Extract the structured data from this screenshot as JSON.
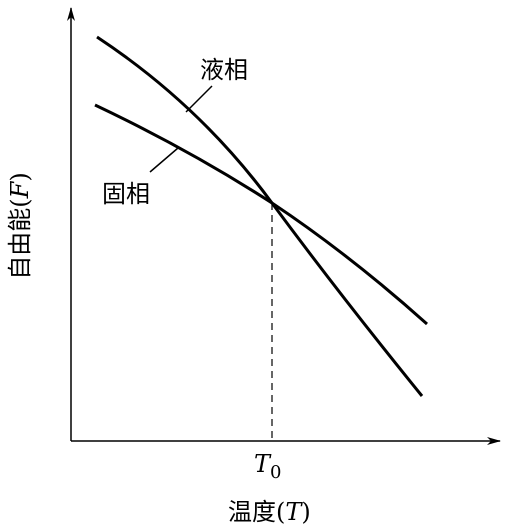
{
  "curves": {
    "liquid": "液相",
    "solid": "固相"
  },
  "y_axis": {
    "label": [
      "自由能(",
      "F",
      ")"
    ]
  },
  "x_axis": {
    "label": [
      "温度(",
      "T",
      ")"
    ],
    "marker": [
      "T",
      "0"
    ]
  }
}
